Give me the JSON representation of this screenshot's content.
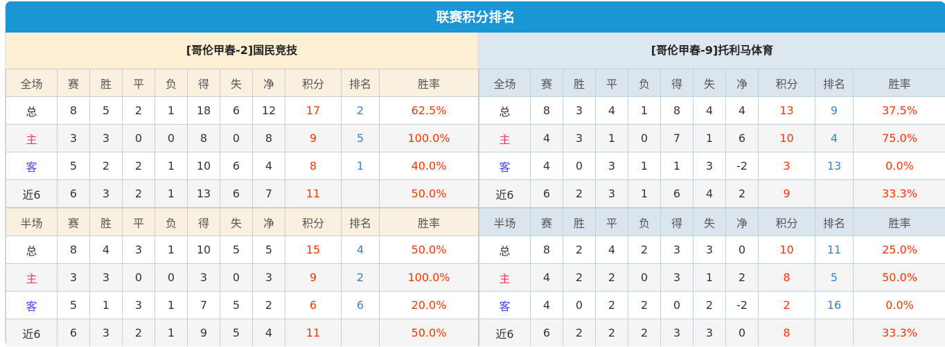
{
  "title": "联赛积分排名",
  "columns": [
    "赛",
    "胜",
    "平",
    "负",
    "得",
    "失",
    "净",
    "积分",
    "排名",
    "胜率"
  ],
  "teams": [
    {
      "name": "[哥伦甲春-2]国民竞技",
      "full": {
        "label": "全场",
        "rows": [
          [
            "总",
            "8",
            "5",
            "2",
            "1",
            "18",
            "6",
            "12",
            "17",
            "2",
            "62.5%"
          ],
          [
            "主",
            "3",
            "3",
            "0",
            "0",
            "8",
            "0",
            "8",
            "9",
            "5",
            "100.0%"
          ],
          [
            "客",
            "5",
            "2",
            "2",
            "1",
            "10",
            "6",
            "4",
            "8",
            "1",
            "40.0%"
          ],
          [
            "近6",
            "6",
            "3",
            "2",
            "1",
            "13",
            "6",
            "7",
            "11",
            "",
            "50.0%"
          ]
        ]
      },
      "half": {
        "label": "半场",
        "rows": [
          [
            "总",
            "8",
            "4",
            "3",
            "1",
            "10",
            "5",
            "5",
            "15",
            "4",
            "50.0%"
          ],
          [
            "主",
            "3",
            "3",
            "0",
            "0",
            "3",
            "0",
            "3",
            "9",
            "2",
            "100.0%"
          ],
          [
            "客",
            "5",
            "1",
            "3",
            "1",
            "7",
            "5",
            "2",
            "6",
            "6",
            "20.0%"
          ],
          [
            "近6",
            "6",
            "3",
            "2",
            "1",
            "9",
            "5",
            "4",
            "11",
            "",
            "50.0%"
          ]
        ]
      }
    },
    {
      "name": "[哥伦甲春-9]托利马体育",
      "full": {
        "label": "全场",
        "rows": [
          [
            "总",
            "8",
            "3",
            "4",
            "1",
            "8",
            "4",
            "4",
            "13",
            "9",
            "37.5%"
          ],
          [
            "主",
            "4",
            "3",
            "1",
            "0",
            "7",
            "1",
            "6",
            "10",
            "4",
            "75.0%"
          ],
          [
            "客",
            "4",
            "0",
            "3",
            "1",
            "1",
            "3",
            "-2",
            "3",
            "13",
            "0.0%"
          ],
          [
            "近6",
            "6",
            "2",
            "3",
            "1",
            "6",
            "4",
            "2",
            "9",
            "",
            "33.3%"
          ]
        ]
      },
      "half": {
        "label": "半场",
        "rows": [
          [
            "总",
            "8",
            "2",
            "4",
            "2",
            "3",
            "3",
            "0",
            "10",
            "11",
            "25.0%"
          ],
          [
            "主",
            "4",
            "2",
            "2",
            "0",
            "3",
            "1",
            "2",
            "8",
            "5",
            "50.0%"
          ],
          [
            "客",
            "4",
            "0",
            "2",
            "2",
            "0",
            "2",
            "-2",
            "2",
            "16",
            "0.0%"
          ],
          [
            "近6",
            "6",
            "2",
            "2",
            "2",
            "3",
            "3",
            "0",
            "8",
            "",
            "33.3%"
          ]
        ]
      }
    }
  ],
  "colors": {
    "header": "#1a96d4",
    "points": "#ff3300",
    "rank": "#3a80c8",
    "home": "#ff3355",
    "away": "#4444ff"
  }
}
